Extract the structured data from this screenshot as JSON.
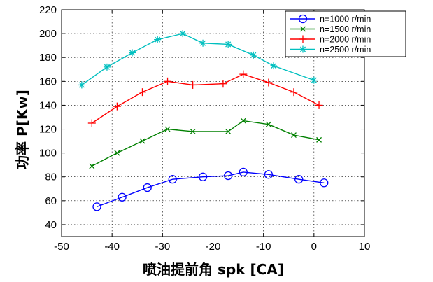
{
  "chart_data": {
    "type": "line",
    "title": "",
    "xlabel": "喷油提前角 spk [CA]",
    "ylabel": "功率 P[Kw]",
    "xlim": [
      -50,
      10
    ],
    "ylim": [
      30,
      220
    ],
    "x_ticks": [
      -50,
      -40,
      -30,
      -20,
      -10,
      0,
      10
    ],
    "y_ticks": [
      40,
      60,
      80,
      100,
      120,
      140,
      160,
      180,
      200,
      220
    ],
    "grid": true,
    "legend_position": "top-right",
    "series": [
      {
        "name": "n=1000 r/min",
        "color": "#0000ff",
        "marker": "circle",
        "x": [
          -43,
          -38,
          -33,
          -28,
          -22,
          -17,
          -14,
          -9,
          -3,
          2
        ],
        "y": [
          55,
          63,
          71,
          78,
          80,
          81,
          84,
          82,
          78,
          75
        ]
      },
      {
        "name": "n=1500 r/min",
        "color": "#008000",
        "marker": "x",
        "x": [
          -44,
          -39,
          -34,
          -29,
          -24,
          -17,
          -14,
          -9,
          -4,
          1
        ],
        "y": [
          89,
          100,
          110,
          120,
          118,
          118,
          127,
          124,
          115,
          111
        ]
      },
      {
        "name": "n=2000 r/min",
        "color": "#ff0000",
        "marker": "plus",
        "x": [
          -44,
          -39,
          -34,
          -29,
          -24,
          -18,
          -14,
          -9,
          -4,
          1
        ],
        "y": [
          125,
          139,
          151,
          160,
          157,
          158,
          166,
          159,
          151,
          140
        ]
      },
      {
        "name": "n=2500 r/min",
        "color": "#00bfbf",
        "marker": "star",
        "x": [
          -46,
          -41,
          -36,
          -31,
          -26,
          -22,
          -17,
          -12,
          -8,
          0
        ],
        "y": [
          157,
          172,
          184,
          195,
          200,
          192,
          191,
          182,
          173,
          161
        ]
      }
    ]
  }
}
